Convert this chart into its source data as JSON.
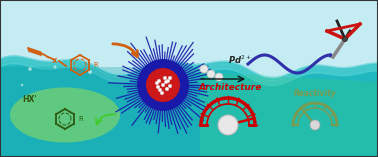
{
  "figsize": [
    3.78,
    1.57
  ],
  "dpi": 100,
  "border_color": "#333333",
  "architecture_label": "Architecture",
  "reactivity_label": "Reactivity",
  "pd_label": "Pd$^{2+}$",
  "gauge1_color": "#cc0000",
  "gauge2_color": "#7a9a50",
  "nanoreactor_blue": "#1a1aaa",
  "nanoreactor_red": "#cc1111",
  "orange_molecule": "#d06010",
  "green_glow": "#aaee60",
  "wave_color": "#2222aa",
  "molecule2_color": "#2a5a10",
  "sky_color": "#cceef8",
  "water_color": "#18b0b8",
  "water_top_color": "#40c8c8"
}
